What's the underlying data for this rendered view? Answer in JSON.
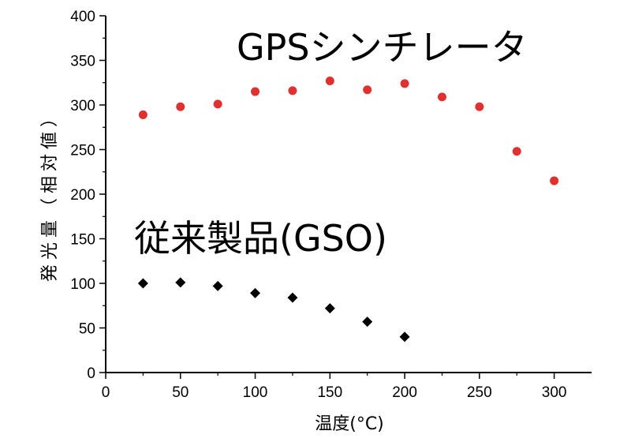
{
  "chart_data": {
    "type": "scatter",
    "xlabel": "温度(°C)",
    "ylabel": "発光量（相対値）",
    "xlim": [
      0,
      325
    ],
    "ylim": [
      0,
      400
    ],
    "xticks": [
      0,
      50,
      100,
      150,
      200,
      250,
      300
    ],
    "yticks": [
      0,
      50,
      100,
      150,
      200,
      250,
      300,
      350,
      400
    ],
    "grid": false,
    "annotations": [
      "GPSシンチレータ",
      "従来製品(GSO)"
    ],
    "series": [
      {
        "name": "GPSシンチレータ",
        "marker": "circle",
        "color": "#e03030",
        "x": [
          25,
          50,
          75,
          100,
          125,
          150,
          175,
          200,
          225,
          250,
          275,
          300
        ],
        "y": [
          289,
          298,
          301,
          315,
          316,
          327,
          317,
          324,
          309,
          298,
          248,
          215
        ]
      },
      {
        "name": "従来製品(GSO)",
        "marker": "diamond",
        "color": "#000000",
        "x": [
          25,
          50,
          75,
          100,
          125,
          150,
          175,
          200
        ],
        "y": [
          100,
          101,
          97,
          89,
          84,
          72,
          57,
          40
        ]
      }
    ]
  }
}
